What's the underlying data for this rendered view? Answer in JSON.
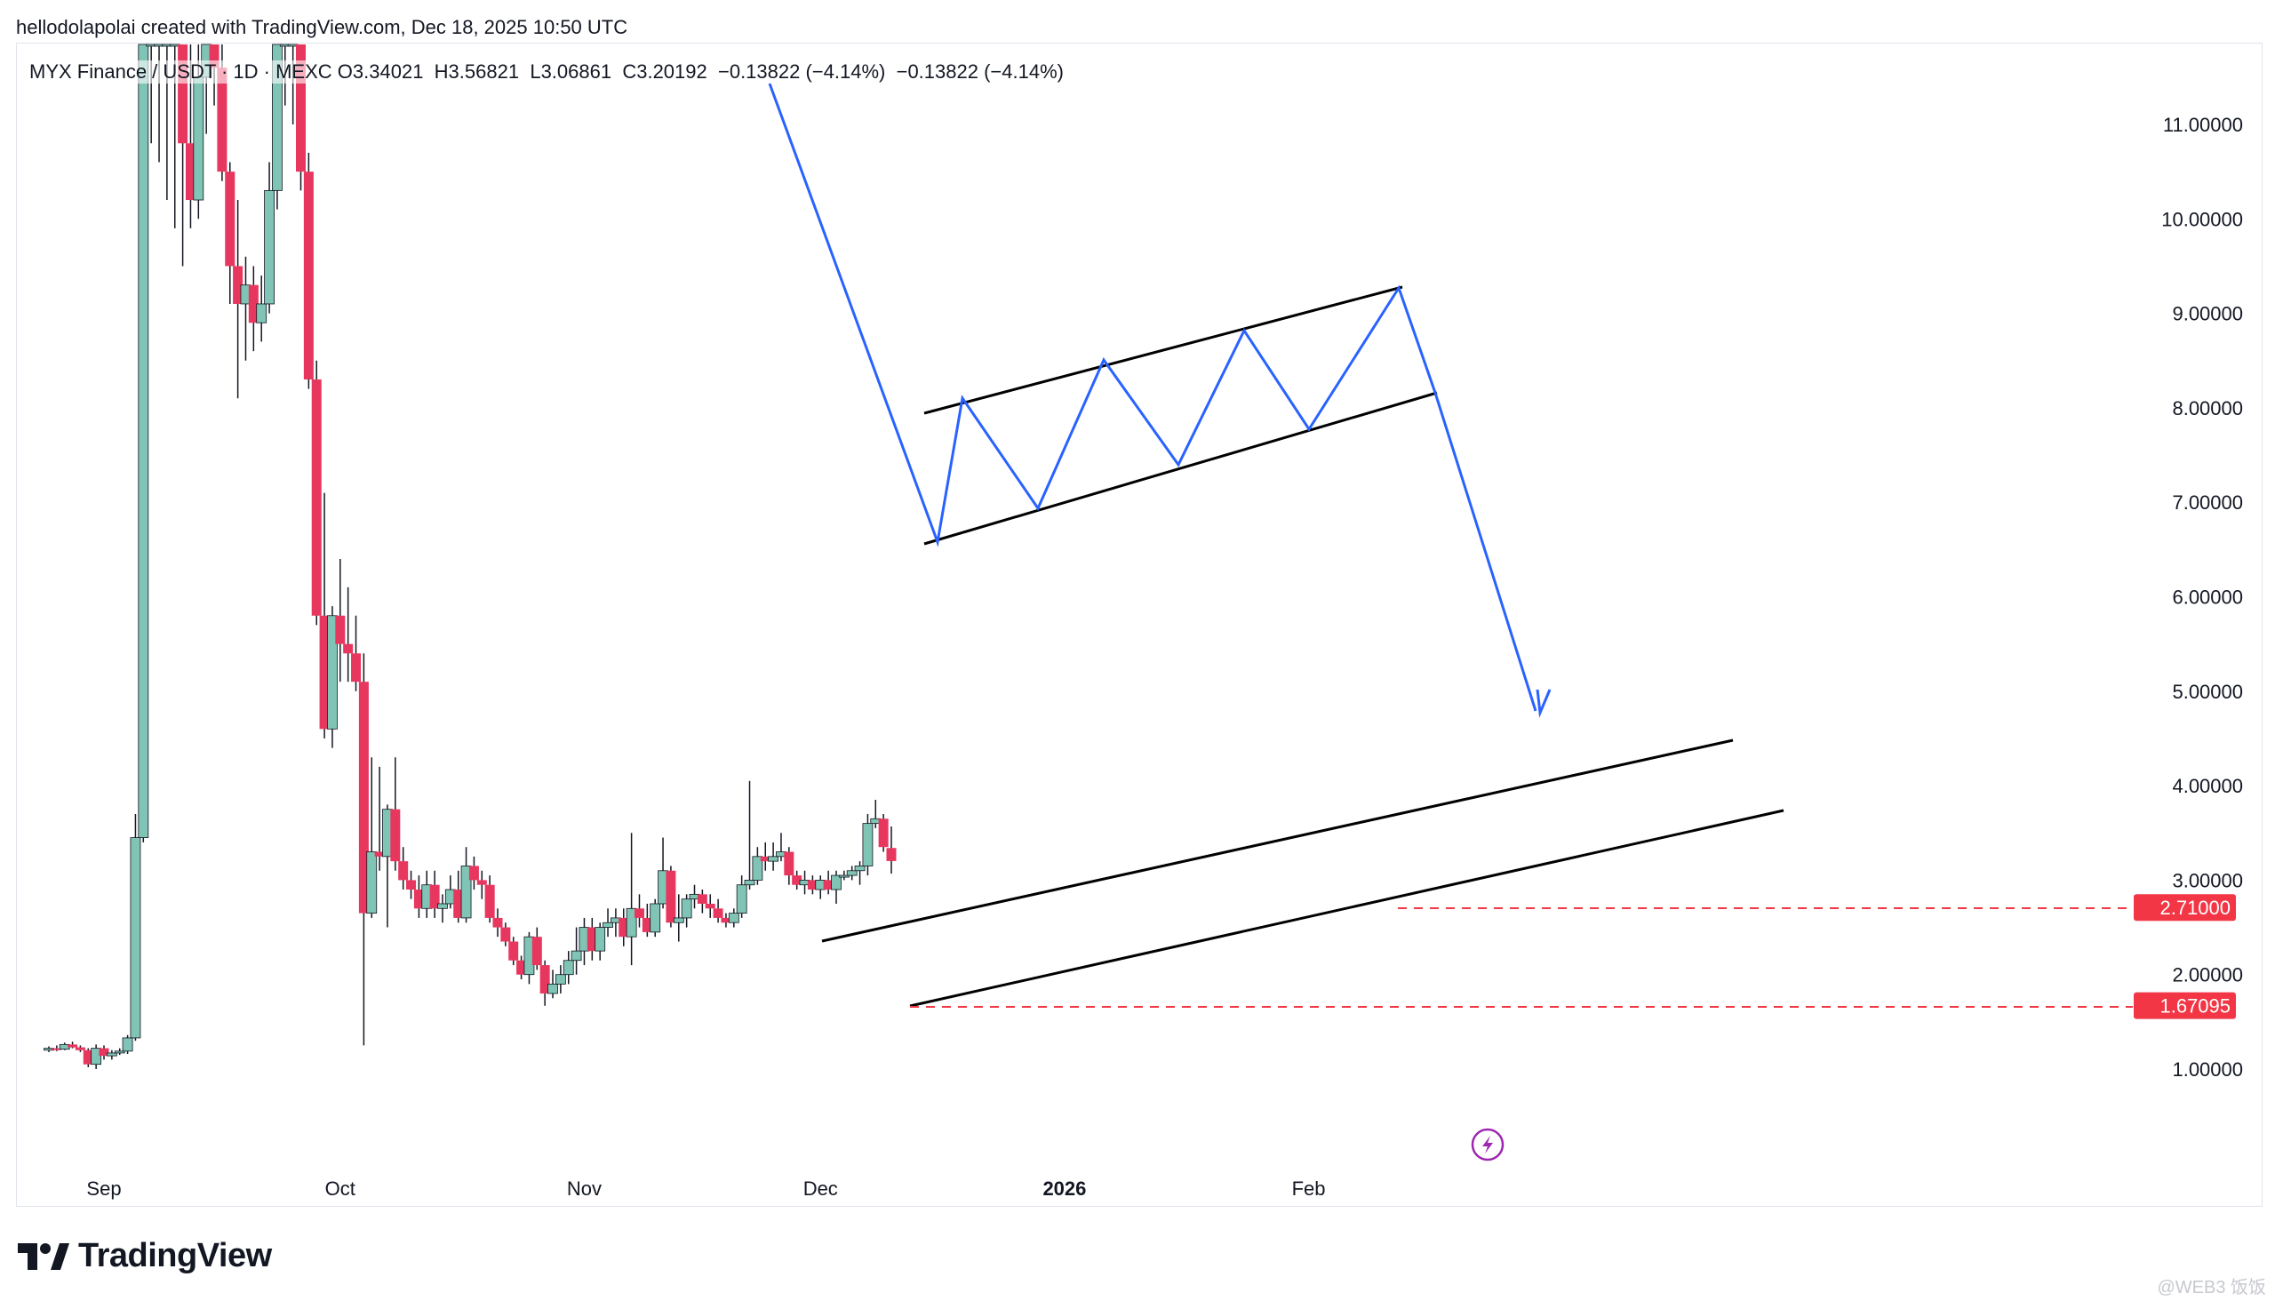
{
  "header": {
    "text": "hellodolapolai created with TradingView.com, Dec 18, 2025 10:50 UTC"
  },
  "legend": {
    "symbol": "MYX Finance / USDT · 1D · MEXC",
    "open": "O3.34021",
    "high": "H3.56821",
    "low": "L3.06861",
    "close": "C3.20192",
    "change1": "−0.13822 (−4.14%)",
    "change2": "−0.13822 (−4.14%)"
  },
  "brand": {
    "name": "TradingView",
    "logo_icon": "tradingview-logo-icon"
  },
  "watermark": {
    "text": "@WEB3 饭饭"
  },
  "colors": {
    "up": "#7fc4b4",
    "down": "#e8375f",
    "pattern": "#2962ff",
    "trend": "#000000",
    "level": "#f23645"
  },
  "chart_data": {
    "type": "candlestick",
    "title": "MYX Finance / USDT · 1D · MEXC",
    "y_ticks": [
      "1.00000",
      "2.00000",
      "3.00000",
      "4.00000",
      "5.00000",
      "6.00000",
      "7.00000",
      "8.00000",
      "9.00000",
      "10.00000",
      "11.00000"
    ],
    "x_ticks": [
      {
        "label": "Sep",
        "date": "2025-09-01",
        "bold": false
      },
      {
        "label": "Oct",
        "date": "2025-10-01",
        "bold": false
      },
      {
        "label": "Nov",
        "date": "2025-11-01",
        "bold": false
      },
      {
        "label": "Dec",
        "date": "2025-12-01",
        "bold": false
      },
      {
        "label": "2026",
        "date": "2026-01-01",
        "bold": true
      },
      {
        "label": "Feb",
        "date": "2026-02-01",
        "bold": false
      }
    ],
    "ylim": [
      0.2,
      11.8
    ],
    "xlim": [
      "2025-08-25",
      "2026-02-15"
    ],
    "grid": false,
    "price_labels": [
      {
        "value": 2.71,
        "text": "2.71000"
      },
      {
        "value": 1.67095,
        "text": "1.67095"
      }
    ],
    "candles": [
      [
        "2025-08-25",
        1.2,
        1.24,
        1.18,
        1.22
      ],
      [
        "2025-08-26",
        1.22,
        1.25,
        1.19,
        1.21
      ],
      [
        "2025-08-27",
        1.21,
        1.28,
        1.2,
        1.26
      ],
      [
        "2025-08-28",
        1.26,
        1.29,
        1.22,
        1.23
      ],
      [
        "2025-08-29",
        1.23,
        1.25,
        1.18,
        1.2
      ],
      [
        "2025-08-30",
        1.2,
        1.22,
        1.02,
        1.05
      ],
      [
        "2025-08-31",
        1.05,
        1.26,
        1.0,
        1.22
      ],
      [
        "2025-09-01",
        1.22,
        1.25,
        1.1,
        1.14
      ],
      [
        "2025-09-02",
        1.14,
        1.2,
        1.1,
        1.17
      ],
      [
        "2025-09-03",
        1.17,
        1.22,
        1.15,
        1.19
      ],
      [
        "2025-09-04",
        1.19,
        1.36,
        1.16,
        1.33
      ],
      [
        "2025-09-05",
        1.33,
        3.7,
        1.3,
        3.45
      ],
      [
        "2025-09-06",
        3.45,
        11.9,
        3.4,
        11.9
      ],
      [
        "2025-09-07",
        11.9,
        11.9,
        10.8,
        11.9
      ],
      [
        "2025-09-08",
        11.9,
        11.9,
        10.6,
        11.9
      ],
      [
        "2025-09-09",
        11.9,
        11.9,
        10.2,
        11.9
      ],
      [
        "2025-09-10",
        11.9,
        11.9,
        9.9,
        11.9
      ],
      [
        "2025-09-11",
        11.9,
        11.9,
        9.5,
        10.8
      ],
      [
        "2025-09-12",
        10.8,
        11.9,
        9.9,
        10.2
      ],
      [
        "2025-09-13",
        10.2,
        11.9,
        10.0,
        11.5
      ],
      [
        "2025-09-14",
        11.5,
        11.9,
        10.9,
        11.9
      ],
      [
        "2025-09-15",
        11.9,
        11.9,
        11.2,
        11.6
      ],
      [
        "2025-09-16",
        11.6,
        11.9,
        10.4,
        10.5
      ],
      [
        "2025-09-17",
        10.5,
        10.6,
        9.1,
        9.5
      ],
      [
        "2025-09-18",
        9.5,
        10.2,
        8.1,
        9.1
      ],
      [
        "2025-09-19",
        9.1,
        9.6,
        8.5,
        9.3
      ],
      [
        "2025-09-20",
        9.3,
        9.5,
        8.6,
        8.9
      ],
      [
        "2025-09-21",
        8.9,
        9.4,
        8.7,
        9.1
      ],
      [
        "2025-09-22",
        9.1,
        10.6,
        9.0,
        10.3
      ],
      [
        "2025-09-23",
        10.3,
        11.9,
        10.1,
        11.9
      ],
      [
        "2025-09-24",
        11.9,
        11.9,
        11.2,
        11.9
      ],
      [
        "2025-09-25",
        11.9,
        11.9,
        11.0,
        11.9
      ],
      [
        "2025-09-26",
        11.9,
        11.9,
        10.3,
        10.5
      ],
      [
        "2025-09-27",
        10.5,
        10.7,
        8.2,
        8.3
      ],
      [
        "2025-09-28",
        8.3,
        8.5,
        5.7,
        5.8
      ],
      [
        "2025-09-29",
        5.8,
        7.1,
        4.5,
        4.6
      ],
      [
        "2025-09-30",
        4.6,
        5.9,
        4.4,
        5.8
      ],
      [
        "2025-10-01",
        5.8,
        6.4,
        5.1,
        5.5
      ],
      [
        "2025-10-02",
        5.5,
        6.1,
        5.1,
        5.4
      ],
      [
        "2025-10-03",
        5.4,
        5.8,
        5.0,
        5.1
      ],
      [
        "2025-10-04",
        5.1,
        5.4,
        1.25,
        2.65
      ],
      [
        "2025-10-05",
        2.65,
        4.3,
        2.6,
        3.3
      ],
      [
        "2025-10-06",
        3.3,
        4.2,
        3.1,
        3.25
      ],
      [
        "2025-10-07",
        3.25,
        3.8,
        2.5,
        3.75
      ],
      [
        "2025-10-08",
        3.75,
        4.3,
        3.1,
        3.2
      ],
      [
        "2025-10-09",
        3.2,
        3.35,
        2.9,
        3.0
      ],
      [
        "2025-10-10",
        3.0,
        3.1,
        2.8,
        2.9
      ],
      [
        "2025-10-11",
        2.9,
        3.05,
        2.6,
        2.7
      ],
      [
        "2025-10-12",
        2.7,
        3.1,
        2.6,
        2.95
      ],
      [
        "2025-10-13",
        2.95,
        3.1,
        2.6,
        2.7
      ],
      [
        "2025-10-14",
        2.7,
        2.85,
        2.55,
        2.75
      ],
      [
        "2025-10-15",
        2.75,
        3.05,
        2.7,
        2.9
      ],
      [
        "2025-10-16",
        2.9,
        3.1,
        2.55,
        2.6
      ],
      [
        "2025-10-17",
        2.6,
        3.35,
        2.55,
        3.15
      ],
      [
        "2025-10-18",
        3.15,
        3.25,
        2.9,
        3.0
      ],
      [
        "2025-10-19",
        3.0,
        3.1,
        2.8,
        2.95
      ],
      [
        "2025-10-20",
        2.95,
        3.05,
        2.55,
        2.6
      ],
      [
        "2025-10-21",
        2.6,
        2.7,
        2.4,
        2.5
      ],
      [
        "2025-10-22",
        2.5,
        2.55,
        2.3,
        2.35
      ],
      [
        "2025-10-23",
        2.35,
        2.4,
        2.1,
        2.15
      ],
      [
        "2025-10-24",
        2.15,
        2.2,
        1.95,
        2.0
      ],
      [
        "2025-10-25",
        2.0,
        2.45,
        1.9,
        2.4
      ],
      [
        "2025-10-26",
        2.4,
        2.5,
        2.05,
        2.1
      ],
      [
        "2025-10-27",
        2.1,
        2.15,
        1.67,
        1.8
      ],
      [
        "2025-10-28",
        1.8,
        2.05,
        1.75,
        1.9
      ],
      [
        "2025-10-29",
        1.9,
        2.1,
        1.8,
        2.0
      ],
      [
        "2025-10-30",
        2.0,
        2.25,
        1.9,
        2.15
      ],
      [
        "2025-10-31",
        2.15,
        2.5,
        2.0,
        2.25
      ],
      [
        "2025-11-01",
        2.25,
        2.6,
        2.1,
        2.5
      ],
      [
        "2025-11-02",
        2.5,
        2.6,
        2.15,
        2.25
      ],
      [
        "2025-11-03",
        2.25,
        2.55,
        2.15,
        2.5
      ],
      [
        "2025-11-04",
        2.5,
        2.7,
        2.4,
        2.55
      ],
      [
        "2025-11-05",
        2.55,
        2.7,
        2.4,
        2.6
      ],
      [
        "2025-11-06",
        2.6,
        2.7,
        2.3,
        2.4
      ],
      [
        "2025-11-07",
        2.4,
        3.5,
        2.1,
        2.7
      ],
      [
        "2025-11-08",
        2.7,
        2.85,
        2.5,
        2.6
      ],
      [
        "2025-11-09",
        2.6,
        2.75,
        2.4,
        2.45
      ],
      [
        "2025-11-10",
        2.45,
        2.8,
        2.4,
        2.75
      ],
      [
        "2025-11-11",
        2.75,
        3.45,
        2.7,
        3.1
      ],
      [
        "2025-11-12",
        3.1,
        3.15,
        2.5,
        2.55
      ],
      [
        "2025-11-13",
        2.55,
        2.85,
        2.35,
        2.6
      ],
      [
        "2025-11-14",
        2.6,
        2.85,
        2.5,
        2.8
      ],
      [
        "2025-11-15",
        2.8,
        2.95,
        2.7,
        2.85
      ],
      [
        "2025-11-16",
        2.85,
        2.9,
        2.65,
        2.75
      ],
      [
        "2025-11-17",
        2.75,
        2.85,
        2.6,
        2.7
      ],
      [
        "2025-11-18",
        2.7,
        2.8,
        2.55,
        2.6
      ],
      [
        "2025-11-19",
        2.6,
        2.65,
        2.5,
        2.55
      ],
      [
        "2025-11-20",
        2.55,
        2.7,
        2.5,
        2.65
      ],
      [
        "2025-11-21",
        2.65,
        3.05,
        2.6,
        2.95
      ],
      [
        "2025-11-22",
        2.95,
        4.05,
        2.9,
        3.0
      ],
      [
        "2025-11-23",
        3.0,
        3.35,
        2.95,
        3.25
      ],
      [
        "2025-11-24",
        3.25,
        3.4,
        3.1,
        3.2
      ],
      [
        "2025-11-25",
        3.2,
        3.4,
        3.1,
        3.25
      ],
      [
        "2025-11-26",
        3.25,
        3.5,
        3.2,
        3.3
      ],
      [
        "2025-11-27",
        3.3,
        3.35,
        2.95,
        3.05
      ],
      [
        "2025-11-28",
        3.05,
        3.1,
        2.9,
        2.95
      ],
      [
        "2025-11-29",
        2.95,
        3.1,
        2.85,
        3.0
      ],
      [
        "2025-11-30",
        3.0,
        3.05,
        2.85,
        2.9
      ],
      [
        "2025-12-01",
        2.9,
        3.05,
        2.8,
        3.0
      ],
      [
        "2025-12-02",
        3.0,
        3.1,
        2.85,
        2.9
      ],
      [
        "2025-12-03",
        2.9,
        3.1,
        2.75,
        3.05
      ],
      [
        "2025-12-04",
        3.05,
        3.1,
        3.0,
        3.05
      ],
      [
        "2025-12-05",
        3.05,
        3.15,
        3.0,
        3.1
      ],
      [
        "2025-12-06",
        3.1,
        3.2,
        2.95,
        3.15
      ],
      [
        "2025-12-07",
        3.15,
        3.7,
        3.05,
        3.6
      ],
      [
        "2025-12-08",
        3.6,
        3.85,
        3.55,
        3.65
      ],
      [
        "2025-12-09",
        3.65,
        3.7,
        3.3,
        3.35
      ],
      [
        "2025-12-10",
        3.34021,
        3.56821,
        3.06861,
        3.20192
      ]
    ]
  }
}
